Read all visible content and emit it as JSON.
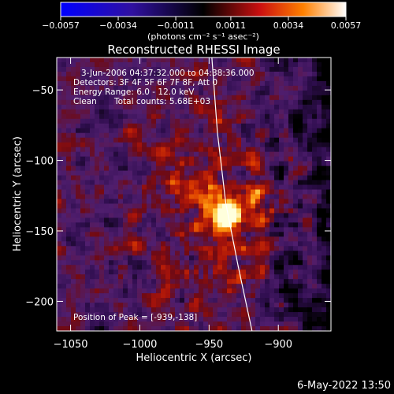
{
  "chart_data": {
    "type": "heatmap",
    "title": "Reconstructed RHESSI Image",
    "xlabel": "Heliocentric X (arcsec)",
    "ylabel": "Heliocentric Y (arcsec)",
    "xlim": [
      -1060,
      -862
    ],
    "ylim": [
      -221,
      -27
    ],
    "xticks": [
      -1050,
      -1000,
      -950,
      -900
    ],
    "xtick_labels": [
      "−1050",
      "−1000",
      "−950",
      "−900"
    ],
    "yticks": [
      -50,
      -100,
      -150,
      -200
    ],
    "ytick_labels": [
      "−50",
      "−100",
      "−150",
      "−200"
    ],
    "colorbar": {
      "min": -0.0057,
      "max": 0.0057,
      "ticks": [
        -0.0057,
        -0.0034,
        -0.0011,
        0.0011,
        0.0034,
        0.0057
      ],
      "tick_labels": [
        "−0.0057",
        "−0.0034",
        "−0.0011",
        "0.0011",
        "0.0034",
        "0.0057"
      ],
      "unit_label": "(photons cm⁻² s⁻¹ asec⁻²)"
    },
    "annotations": {
      "time_range": "3-Jun-2006 04:37:32.000 to 04:38:36.000",
      "detectors": "Detectors: 3F 4F 5F 6F 7F 8F, Att 0",
      "energy": "Energy Range: 6.0 - 12.0 keV",
      "method": "Clean",
      "counts": "Total counts: 5.68E+03",
      "peak": "Position of Peak = [-939,-138]"
    },
    "peak": [
      -939,
      -138
    ],
    "limb": [
      [
        -948,
        -27
      ],
      [
        -944,
        -80
      ],
      [
        -938,
        -130
      ],
      [
        -929,
        -175
      ],
      [
        -919,
        -221
      ]
    ]
  },
  "footer_date": "6-May-2022 13:50"
}
